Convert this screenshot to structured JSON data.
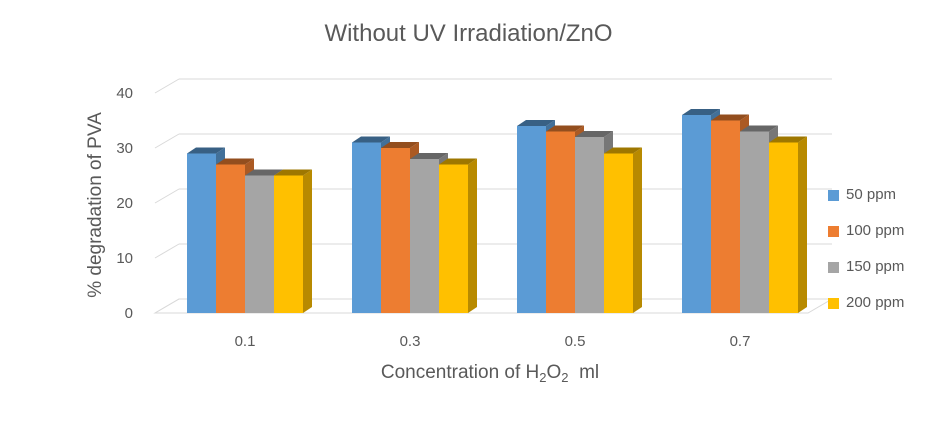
{
  "chart_data": {
    "type": "bar",
    "title": "Without UV Irradiation/ZnO",
    "xlabel": {
      "prefix": "Concentration of H",
      "sub1": "2",
      "mid": "O",
      "sub2": "2",
      "suffix": "  ml"
    },
    "ylabel": "% degradation of PVA",
    "categories": [
      "0.1",
      "0.3",
      "0.5",
      "0.7"
    ],
    "yticks": [
      "0",
      "10",
      "20",
      "30",
      "40"
    ],
    "ylim": [
      0,
      40
    ],
    "grid": true,
    "legend_position": "right",
    "series": [
      {
        "name": "50 ppm",
        "color": "#5B9BD5",
        "values": [
          29,
          31,
          34,
          36
        ]
      },
      {
        "name": "100 ppm",
        "color": "#ED7D31",
        "values": [
          27,
          30,
          33,
          35
        ]
      },
      {
        "name": "150 ppm",
        "color": "#A5A5A5",
        "values": [
          25,
          28,
          32,
          33
        ]
      },
      {
        "name": "200 ppm",
        "color": "#FFC000",
        "values": [
          25,
          27,
          29,
          31
        ]
      }
    ]
  }
}
